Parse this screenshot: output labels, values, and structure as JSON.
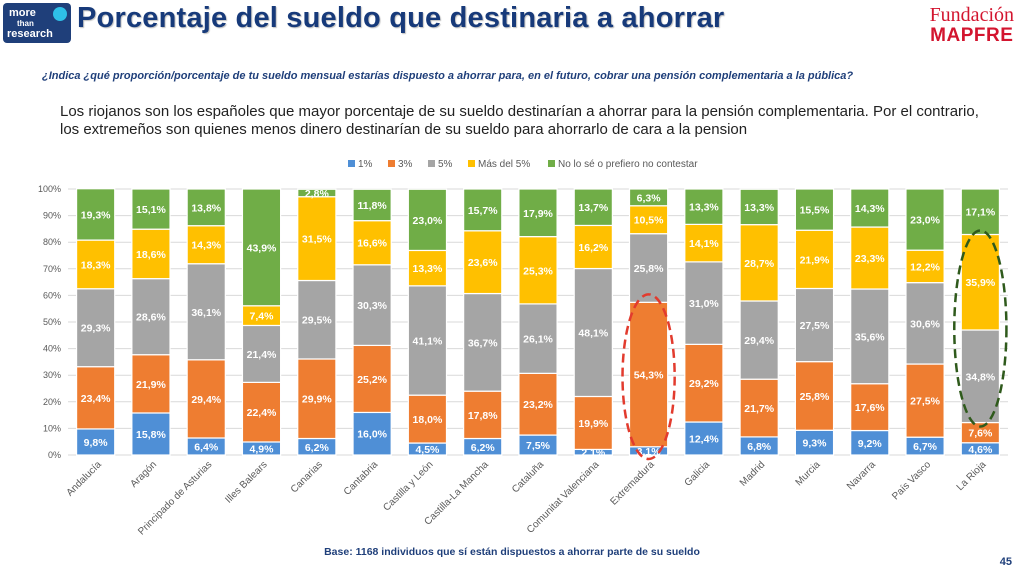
{
  "header": {
    "logo_line1": "more",
    "logo_line2": "than",
    "logo_line3": "research",
    "title": "Porcentaje del sueldo que destinaria a ahorrar",
    "brand_line1": "Fundación",
    "brand_line2": "MAPFRE"
  },
  "question": "¿Indica ¿qué proporción/porcentaje de tu sueldo mensual estarías dispuesto a ahorrar para, en el futuro, cobrar una pensión complementaria a la pública?",
  "summary": "Los riojanos son los españoles que mayor porcentaje de su sueldo destinarían a ahorrar para la pensión complementaria. Por el contrario, los extremeños son quienes menos dinero destinarían de su sueldo para ahorrarlo de cara a la pension",
  "base_note": "Base: 1168 individuos que sí están dispuestos a ahorrar parte de su sueldo",
  "page_number": "45",
  "colors": {
    "s1": "#4f8fd6",
    "s3": "#ee7d31",
    "s5": "#a5a5a5",
    "smas": "#ffc000",
    "sno": "#70ad47",
    "highlight_red": "#e23b2e",
    "highlight_green": "#2f5a1c"
  },
  "chart_data": {
    "type": "bar",
    "stacked": true,
    "categories": [
      "Andalucía",
      "Aragón",
      "Principado de Asturias",
      "Illes Balears",
      "Canarias",
      "Cantabria",
      "Castilla y León",
      "Castilla-La Mancha",
      "Cataluña",
      "Comunitat Valenciana",
      "Extremadura",
      "Galicia",
      "Madrid",
      "Murcia",
      "Navarra",
      "País Vasco",
      "La Rioja"
    ],
    "series": [
      {
        "name": "1%",
        "values": [
          9.8,
          15.8,
          6.4,
          4.9,
          6.2,
          16.0,
          4.5,
          6.2,
          7.5,
          2.1,
          3.1,
          12.4,
          6.8,
          9.3,
          9.2,
          6.7,
          4.6
        ]
      },
      {
        "name": "3%",
        "values": [
          23.4,
          21.9,
          29.4,
          22.4,
          29.9,
          25.2,
          18.0,
          17.8,
          23.2,
          19.9,
          54.3,
          29.2,
          21.7,
          25.8,
          17.6,
          27.5,
          7.6
        ]
      },
      {
        "name": "5%",
        "values": [
          29.3,
          28.6,
          36.1,
          21.4,
          29.5,
          30.3,
          41.1,
          36.7,
          26.1,
          48.1,
          25.8,
          31.0,
          29.4,
          27.5,
          35.6,
          30.6,
          34.8
        ]
      },
      {
        "name": "Más del 5%",
        "values": [
          18.3,
          18.6,
          14.3,
          7.4,
          31.5,
          16.6,
          13.3,
          23.6,
          25.3,
          16.2,
          10.5,
          14.1,
          28.7,
          21.9,
          23.3,
          12.2,
          35.9
        ]
      },
      {
        "name": "No lo sé o prefiero no contestar",
        "values": [
          19.3,
          15.1,
          13.8,
          43.9,
          2.8,
          11.8,
          23.0,
          15.7,
          17.9,
          13.7,
          6.3,
          13.3,
          13.3,
          15.5,
          14.3,
          23.0,
          17.1
        ]
      }
    ],
    "labels": [
      [
        "9,8%",
        "15,8%",
        "6,4%",
        "4,9%",
        "6,2%",
        "16,0%",
        "4,5%",
        "6,2%",
        "7,5%",
        "2,1%",
        "3,1%",
        "12,4%",
        "6,8%",
        "9,3%",
        "9,2%",
        "6,7%",
        "4,6%"
      ],
      [
        "23,4%",
        "21,9%",
        "29,4%",
        "22,4%",
        "29,9%",
        "25,2%",
        "18,0%",
        "17,8%",
        "23,2%",
        "19,9%",
        "54,3%",
        "29,2%",
        "21,7%",
        "25,8%",
        "17,6%",
        "27,5%",
        "7,6%"
      ],
      [
        "29,3%",
        "28,6%",
        "36,1%",
        "21,4%",
        "29,5%",
        "30,3%",
        "41,1%",
        "36,7%",
        "26,1%",
        "48,1%",
        "25,8%",
        "31,0%",
        "29,4%",
        "27,5%",
        "35,6%",
        "30,6%",
        "34,8%"
      ],
      [
        "18,3%",
        "18,6%",
        "14,3%",
        "7,4%",
        "31,5%",
        "16,6%",
        "13,3%",
        "23,6%",
        "25,3%",
        "16,2%",
        "10,5%",
        "14,1%",
        "28,7%",
        "21,9%",
        "23,3%",
        "12,2%",
        "35,9%"
      ],
      [
        "19,3%",
        "15,1%",
        "13,8%",
        "43,9%",
        "2,8%",
        "11,8%",
        "23,0%",
        "15,7%",
        "17,9%",
        "13,7%",
        "6,3%",
        "13,3%",
        "13,3%",
        "15,5%",
        "14,3%",
        "23,0%",
        "17,1%"
      ]
    ],
    "yticks": [
      "0%",
      "10%",
      "20%",
      "30%",
      "40%",
      "50%",
      "60%",
      "70%",
      "80%",
      "90%",
      "100%"
    ],
    "ylim": [
      0,
      100
    ],
    "legend_position": "top",
    "highlighted": [
      "Extremadura",
      "La Rioja"
    ]
  }
}
